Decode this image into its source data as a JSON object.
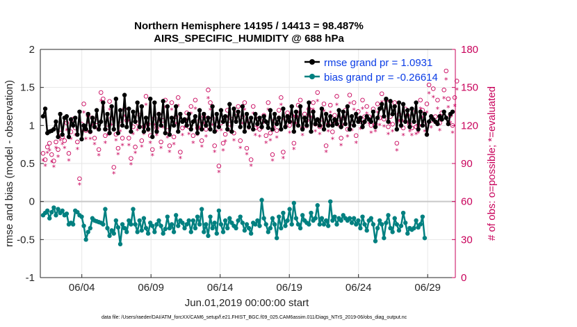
{
  "chart_data": {
    "type": "line",
    "title": "Northern Hemisphere 14195 / 14413 = 98.487%",
    "subtitle": "AIRS_SPECIFIC_HUMIDITY @ 688 hPa",
    "xlabel": "Jun.01,2019 00:00:00 start",
    "ylabel": "rmse and bias (model - observation)",
    "ylabel_right": "# of obs: o=possible; *=evaluated",
    "xlim": [
      0,
      30
    ],
    "ylim": [
      -1,
      2
    ],
    "ylim_right": [
      0,
      180
    ],
    "x_ticks": [
      3,
      8,
      13,
      18,
      23,
      28
    ],
    "x_tick_labels": [
      "06/04",
      "06/09",
      "06/14",
      "06/19",
      "06/24",
      "06/29"
    ],
    "y_ticks": [
      -1,
      -0.5,
      0,
      0.5,
      1,
      1.5,
      2
    ],
    "y_tick_labels": [
      "-1",
      "-0.5",
      "0",
      "0.5",
      "1",
      "1.5",
      "2"
    ],
    "y_ticks_right": [
      0,
      30,
      60,
      90,
      120,
      150,
      180
    ],
    "y_tick_labels_right": [
      "0",
      "30",
      "60",
      "90",
      "120",
      "150",
      "180"
    ],
    "legend": [
      "rmse grand pr = 1.0931",
      "bias grand pr = -0.26614"
    ],
    "series": [
      {
        "name": "rmse",
        "color": "#000000",
        "values": [
          1.12,
          1.22,
          0.9,
          0.92,
          0.93,
          0.95,
          1.05,
          0.85,
          1.15,
          0.88,
          1.1,
          1.12,
          0.85,
          1.08,
          1.0,
          1.1,
          0.88,
          1.18,
          0.82,
          1.0,
          0.95,
          1.15,
          0.92,
          1.1,
          0.98,
          1.2,
          0.95,
          1.05,
          1.3,
          0.95,
          1.15,
          0.9,
          1.25,
          0.95,
          1.35,
          0.9,
          1.2,
          1.0,
          1.4,
          0.98,
          1.22,
          0.92,
          1.18,
          1.05,
          1.3,
          0.98,
          1.25,
          0.92,
          1.1,
          0.95,
          1.35,
          0.85,
          1.3,
          0.92,
          1.15,
          1.0,
          1.32,
          0.9,
          1.25,
          0.88,
          1.1,
          1.0,
          1.25,
          0.92,
          1.15,
          1.05,
          1.08,
          1.0,
          1.15,
          0.95,
          1.05,
          1.12,
          0.9,
          1.2,
          0.95,
          1.15,
          1.0,
          1.1,
          0.95,
          1.25,
          0.92,
          1.15,
          0.98,
          1.2,
          1.05,
          1.12,
          0.95,
          1.28,
          0.92,
          1.22,
          1.05,
          1.18,
          0.98,
          1.25,
          0.92,
          1.15,
          0.98,
          1.1,
          0.95,
          1.15,
          1.02,
          1.1,
          0.98,
          1.12,
          1.05,
          0.97,
          1.2,
          0.95,
          1.15,
          1.02,
          1.1,
          0.95,
          1.22,
          0.98,
          1.12,
          1.05,
          1.25,
          0.92,
          1.18,
          1.0,
          1.25,
          0.95,
          1.1,
          1.0,
          1.3,
          0.92,
          1.18,
          1.02,
          1.08,
          1.0,
          1.22,
          0.95,
          1.15,
          1.0,
          1.12,
          1.0,
          1.08,
          1.02,
          1.2,
          0.98,
          1.18,
          1.02,
          1.25,
          0.95,
          1.12,
          1.0,
          1.15,
          1.05,
          1.1,
          0.98,
          1.05,
          1.12,
          1.08,
          1.05,
          1.18,
          0.98,
          1.1,
          1.22,
          1.28,
          1.12,
          1.35,
          1.05,
          1.32,
          1.15,
          1.25,
          0.95,
          1.3,
          1.0,
          1.28,
          1.05,
          1.2,
          0.98,
          1.22,
          1.05,
          1.3,
          0.95,
          1.18,
          1.0,
          1.15,
          0.88,
          1.05,
          1.12,
          1.08,
          1.05,
          1.02,
          1.12,
          1.08,
          1.18,
          1.1,
          1.02,
          1.15,
          1.18
        ]
      },
      {
        "name": "bias",
        "color": "#008080",
        "values": [
          -0.18,
          -0.15,
          -0.12,
          -0.22,
          -0.14,
          -0.08,
          -0.18,
          -0.1,
          -0.15,
          -0.12,
          -0.18,
          -0.16,
          -0.3,
          -0.28,
          -0.3,
          -0.12,
          -0.14,
          -0.18,
          -0.2,
          -0.32,
          -0.5,
          -0.4,
          -0.35,
          -0.22,
          -0.25,
          -0.26,
          -0.27,
          -0.28,
          -0.3,
          -0.1,
          -0.35,
          -0.45,
          -0.38,
          -0.42,
          -0.25,
          -0.34,
          -0.56,
          -0.3,
          -0.35,
          -0.4,
          -0.25,
          -0.3,
          -0.1,
          -0.3,
          -0.4,
          -0.25,
          -0.38,
          -0.22,
          -0.35,
          -0.42,
          -0.28,
          -0.32,
          -0.4,
          -0.3,
          -0.25,
          -0.32,
          -0.42,
          -0.36,
          -0.2,
          -0.35,
          -0.3,
          -0.4,
          -0.18,
          -0.32,
          -0.25,
          -0.28,
          -0.35,
          -0.3,
          -0.25,
          -0.4,
          -0.25,
          -0.35,
          -0.2,
          -0.3,
          -0.1,
          -0.4,
          -0.3,
          -0.45,
          -0.2,
          -0.35,
          -0.28,
          -0.42,
          -0.12,
          -0.3,
          -0.4,
          -0.25,
          -0.35,
          -0.22,
          -0.28,
          -0.32,
          -0.35,
          -0.25,
          -0.2,
          -0.28,
          -0.38,
          -0.3,
          -0.35,
          -0.42,
          -0.28,
          -0.3,
          -0.25,
          -0.32,
          0.02,
          -0.22,
          -0.3,
          -0.4,
          -0.35,
          -0.22,
          -0.3,
          -0.48,
          -0.2,
          -0.35,
          -0.15,
          -0.32,
          -0.25,
          -0.1,
          -0.3,
          -0.02,
          -0.22,
          -0.3,
          -0.35,
          -0.18,
          -0.25,
          -0.28,
          -0.3,
          -0.15,
          -0.25,
          -0.22,
          -0.05,
          -0.3,
          -0.22,
          -0.3,
          -0.25,
          -0.32,
          0.0,
          -0.25,
          -0.2,
          -0.3,
          -0.22,
          -0.25,
          -0.18,
          -0.22,
          -0.25,
          -0.22,
          -0.28,
          -0.22,
          -0.3,
          -0.25,
          -0.35,
          -0.2,
          -0.3,
          -0.38,
          -0.25,
          -0.22,
          -0.3,
          -0.52,
          -0.35,
          -0.25,
          -0.3,
          -0.48,
          -0.28,
          -0.18,
          -0.35,
          -0.4,
          -0.22,
          -0.3,
          -0.38,
          -0.32,
          -0.15,
          -0.28,
          -0.42,
          -0.35,
          -0.37,
          -0.35,
          -0.25,
          -0.34,
          -0.3,
          -0.2,
          -0.48
        ]
      },
      {
        "name": "obs possible",
        "color": "#c8005a",
        "values": [
          98,
          93,
          103,
          106,
          97,
          92,
          107,
          101,
          114,
          111,
          108,
          122,
          98,
          115,
          125,
          118,
          107,
          78,
          121,
          137,
          116,
          128,
          115,
          126,
          110,
          123,
          101,
          146,
          141,
          112,
          118,
          139,
          126,
          87,
          113,
          102,
          121,
          110,
          133,
          124,
          110,
          94,
          119,
          103,
          122,
          128,
          108,
          119,
          143,
          121,
          112,
          101,
          126,
          118,
          129,
          107,
          124,
          140,
          116,
          104,
          138,
          111,
          127,
          142,
          99,
          118,
          124,
          130,
          119,
          135,
          112,
          140,
          118,
          124,
          108,
          127,
          117,
          148,
          138,
          126,
          104,
          121,
          88,
          122,
          106,
          113,
          132,
          121,
          125,
          114,
          130,
          135,
          108,
          127,
          138,
          102,
          123,
          93,
          135,
          118,
          125,
          117,
          123,
          128,
          112,
          138,
          114,
          97,
          124,
          116,
          132,
          142,
          99,
          125,
          130,
          120,
          128,
          106,
          127,
          136,
          140,
          118,
          129,
          124,
          133,
          132,
          138,
          121,
          146,
          119,
          125,
          137,
          104,
          121,
          136,
          115,
          128,
          143,
          125,
          110,
          126,
          132,
          117,
          144,
          122,
          138,
          112,
          131,
          123,
          140,
          127,
          135,
          127,
          120,
          133,
          121,
          137,
          126,
          145,
          125,
          140,
          119,
          127,
          121,
          138,
          106,
          129,
          124,
          118,
          133,
          128,
          121,
          118,
          130,
          119,
          120,
          140,
          132,
          121,
          137,
          152,
          124,
          149,
          127,
          140,
          122,
          130,
          148,
          163,
          141,
          128,
          120,
          142,
          155
        ],
        "marker": "o"
      },
      {
        "name": "obs evaluated",
        "color": "#c8005a",
        "values": [
          93,
          89,
          99,
          101,
          92,
          88,
          103,
          96,
          109,
          106,
          103,
          117,
          93,
          110,
          120,
          113,
          102,
          74,
          116,
          131,
          110,
          123,
          110,
          121,
          106,
          118,
          97,
          140,
          135,
          107,
          113,
          133,
          121,
          83,
          109,
          98,
          116,
          105,
          128,
          119,
          105,
          90,
          114,
          99,
          117,
          123,
          104,
          114,
          137,
          116,
          107,
          97,
          121,
          113,
          124,
          103,
          119,
          135,
          111,
          100,
          133,
          106,
          122,
          136,
          95,
          113,
          119,
          125,
          114,
          130,
          107,
          134,
          113,
          119,
          104,
          122,
          112,
          142,
          133,
          121,
          100,
          116,
          84,
          117,
          101,
          108,
          127,
          116,
          120,
          109,
          125,
          130,
          103,
          122,
          133,
          98,
          118,
          89,
          130,
          113,
          120,
          112,
          118,
          123,
          107,
          133,
          109,
          93,
          119,
          111,
          127,
          137,
          95,
          120,
          125,
          115,
          123,
          102,
          122,
          131,
          134,
          113,
          124,
          119,
          128,
          127,
          133,
          116,
          140,
          114,
          120,
          132,
          100,
          116,
          131,
          110,
          123,
          137,
          120,
          105,
          121,
          127,
          112,
          138,
          117,
          133,
          107,
          126,
          118,
          134,
          122,
          130,
          122,
          115,
          128,
          116,
          131,
          121,
          139,
          120,
          134,
          114,
          122,
          116,
          132,
          101,
          124,
          119,
          113,
          128,
          123,
          116,
          113,
          125,
          114,
          115,
          134,
          127,
          116,
          131,
          146,
          119,
          143,
          122,
          134,
          117,
          125,
          142,
          157,
          135,
          123,
          115,
          136,
          149
        ],
        "marker": "*"
      }
    ]
  },
  "footer": {
    "data_file": "data file: /Users/raeder/DAI/ATM_forcXX/CAM6_setup/f.e21.FHIST_BGC.f09_025.CAM6assim.011/Diags_NTrS_2019-06/obs_diag_output.nc"
  },
  "colors": {
    "obs": "#c8005a",
    "rmse": "#000000",
    "bias": "#008080",
    "legend_text": "#0a3ce6",
    "grid": "#e6e6e6",
    "zero_line": "#c8c8c8"
  }
}
